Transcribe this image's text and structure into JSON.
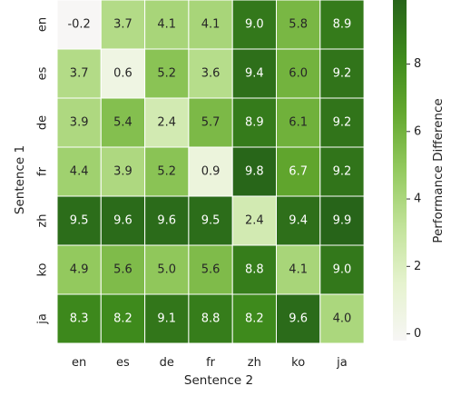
{
  "chart_data": {
    "type": "heatmap",
    "xlabel": "Sentence 2",
    "ylabel": "Sentence 1",
    "x_categories": [
      "en",
      "es",
      "de",
      "fr",
      "zh",
      "ko",
      "ja"
    ],
    "y_categories": [
      "en",
      "es",
      "de",
      "fr",
      "zh",
      "ko",
      "ja"
    ],
    "values": [
      [
        -0.2,
        3.7,
        4.1,
        4.1,
        9.0,
        5.8,
        8.9
      ],
      [
        3.7,
        0.6,
        5.2,
        3.6,
        9.4,
        6.0,
        9.2
      ],
      [
        3.9,
        5.4,
        2.4,
        5.7,
        8.9,
        6.1,
        9.2
      ],
      [
        4.4,
        3.9,
        5.2,
        0.9,
        9.8,
        6.7,
        9.2
      ],
      [
        9.5,
        9.6,
        9.6,
        9.5,
        2.4,
        9.4,
        9.9
      ],
      [
        4.9,
        5.6,
        5.0,
        5.6,
        8.8,
        4.1,
        9.0
      ],
      [
        8.3,
        8.2,
        9.1,
        8.8,
        8.2,
        9.6,
        4.0
      ]
    ],
    "colorbar": {
      "label": "Performance Difference",
      "ticks": [
        "0",
        "2",
        "4",
        "6",
        "8"
      ],
      "range": [
        -0.2,
        9.9
      ],
      "colormap": [
        "#f7f6f5",
        "#e6f3cf",
        "#c2e39a",
        "#94ca5f",
        "#64a82f",
        "#3e8a1c",
        "#276419"
      ]
    }
  }
}
